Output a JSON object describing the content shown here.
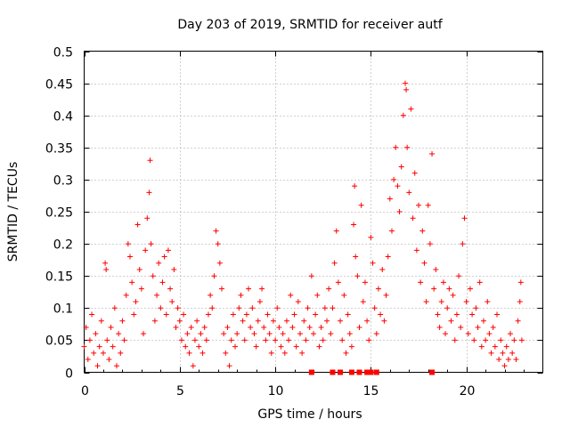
{
  "chart_data": {
    "type": "scatter",
    "title": "Day 203 of 2019, SRMTID for receiver autf",
    "xlabel": "GPS time / hours",
    "ylabel": "SRMTID / TECUs",
    "xlim": [
      0,
      24
    ],
    "ylim": [
      0,
      0.5
    ],
    "x_ticks": [
      0,
      5,
      10,
      15,
      20
    ],
    "x_tick_labels": [
      "0",
      "5",
      "10",
      "15",
      "20"
    ],
    "y_ticks": [
      0,
      0.05,
      0.1,
      0.15,
      0.2,
      0.25,
      0.3,
      0.35,
      0.4,
      0.45,
      0.5
    ],
    "y_tick_labels": [
      "0",
      "0.05",
      "0.1",
      "0.15",
      "0.2",
      "0.25",
      "0.3",
      "0.35",
      "0.4",
      "0.45",
      "0.5"
    ],
    "grid": true,
    "marker": "plus",
    "color": "#ff0000",
    "series": [
      {
        "name": "SRMTID",
        "points": [
          [
            0.0,
            0.04
          ],
          [
            0.1,
            0.07
          ],
          [
            0.2,
            0.02
          ],
          [
            0.3,
            0.05
          ],
          [
            0.4,
            0.09
          ],
          [
            0.5,
            0.03
          ],
          [
            0.6,
            0.06
          ],
          [
            0.7,
            0.01
          ],
          [
            0.8,
            0.04
          ],
          [
            0.9,
            0.08
          ],
          [
            1.0,
            0.03
          ],
          [
            1.1,
            0.17
          ],
          [
            1.15,
            0.16
          ],
          [
            1.2,
            0.05
          ],
          [
            1.3,
            0.02
          ],
          [
            1.4,
            0.07
          ],
          [
            1.5,
            0.04
          ],
          [
            1.6,
            0.1
          ],
          [
            1.7,
            0.01
          ],
          [
            1.8,
            0.06
          ],
          [
            1.9,
            0.03
          ],
          [
            2.0,
            0.08
          ],
          [
            2.1,
            0.05
          ],
          [
            2.2,
            0.12
          ],
          [
            2.3,
            0.2
          ],
          [
            2.4,
            0.18
          ],
          [
            2.5,
            0.14
          ],
          [
            2.6,
            0.09
          ],
          [
            2.7,
            0.11
          ],
          [
            2.8,
            0.23
          ],
          [
            2.9,
            0.16
          ],
          [
            3.0,
            0.13
          ],
          [
            3.1,
            0.06
          ],
          [
            3.2,
            0.19
          ],
          [
            3.3,
            0.24
          ],
          [
            3.4,
            0.28
          ],
          [
            3.45,
            0.33
          ],
          [
            3.5,
            0.2
          ],
          [
            3.6,
            0.15
          ],
          [
            3.7,
            0.08
          ],
          [
            3.8,
            0.12
          ],
          [
            3.9,
            0.17
          ],
          [
            4.0,
            0.1
          ],
          [
            4.1,
            0.14
          ],
          [
            4.2,
            0.18
          ],
          [
            4.3,
            0.09
          ],
          [
            4.4,
            0.19
          ],
          [
            4.5,
            0.13
          ],
          [
            4.6,
            0.11
          ],
          [
            4.7,
            0.16
          ],
          [
            4.8,
            0.07
          ],
          [
            4.9,
            0.1
          ],
          [
            5.0,
            0.08
          ],
          [
            5.1,
            0.05
          ],
          [
            5.2,
            0.09
          ],
          [
            5.3,
            0.04
          ],
          [
            5.4,
            0.06
          ],
          [
            5.5,
            0.03
          ],
          [
            5.6,
            0.07
          ],
          [
            5.7,
            0.01
          ],
          [
            5.8,
            0.05
          ],
          [
            5.9,
            0.08
          ],
          [
            6.0,
            0.04
          ],
          [
            6.1,
            0.06
          ],
          [
            6.2,
            0.03
          ],
          [
            6.3,
            0.07
          ],
          [
            6.4,
            0.05
          ],
          [
            6.5,
            0.09
          ],
          [
            6.6,
            0.12
          ],
          [
            6.7,
            0.1
          ],
          [
            6.8,
            0.15
          ],
          [
            6.9,
            0.22
          ],
          [
            7.0,
            0.2
          ],
          [
            7.1,
            0.17
          ],
          [
            7.2,
            0.13
          ],
          [
            7.3,
            0.06
          ],
          [
            7.4,
            0.03
          ],
          [
            7.5,
            0.07
          ],
          [
            7.6,
            0.01
          ],
          [
            7.7,
            0.05
          ],
          [
            7.8,
            0.09
          ],
          [
            7.9,
            0.04
          ],
          [
            8.0,
            0.06
          ],
          [
            8.1,
            0.1
          ],
          [
            8.2,
            0.12
          ],
          [
            8.3,
            0.08
          ],
          [
            8.4,
            0.05
          ],
          [
            8.5,
            0.09
          ],
          [
            8.6,
            0.13
          ],
          [
            8.7,
            0.07
          ],
          [
            8.8,
            0.1
          ],
          [
            8.9,
            0.06
          ],
          [
            9.0,
            0.04
          ],
          [
            9.1,
            0.08
          ],
          [
            9.2,
            0.11
          ],
          [
            9.3,
            0.13
          ],
          [
            9.4,
            0.07
          ],
          [
            9.5,
            0.05
          ],
          [
            9.6,
            0.09
          ],
          [
            9.7,
            0.06
          ],
          [
            9.8,
            0.03
          ],
          [
            9.9,
            0.08
          ],
          [
            10.0,
            0.05
          ],
          [
            10.1,
            0.1
          ],
          [
            10.2,
            0.07
          ],
          [
            10.3,
            0.04
          ],
          [
            10.4,
            0.06
          ],
          [
            10.5,
            0.03
          ],
          [
            10.6,
            0.08
          ],
          [
            10.7,
            0.05
          ],
          [
            10.8,
            0.12
          ],
          [
            10.9,
            0.07
          ],
          [
            11.0,
            0.09
          ],
          [
            11.1,
            0.04
          ],
          [
            11.2,
            0.11
          ],
          [
            11.3,
            0.06
          ],
          [
            11.4,
            0.03
          ],
          [
            11.5,
            0.08
          ],
          [
            11.6,
            0.05
          ],
          [
            11.7,
            0.1
          ],
          [
            11.8,
            0.07
          ],
          [
            11.9,
            0.15
          ],
          [
            12.0,
            0.06
          ],
          [
            12.1,
            0.09
          ],
          [
            12.2,
            0.12
          ],
          [
            12.3,
            0.04
          ],
          [
            12.4,
            0.07
          ],
          [
            12.5,
            0.05
          ],
          [
            12.6,
            0.1
          ],
          [
            12.7,
            0.08
          ],
          [
            12.8,
            0.13
          ],
          [
            12.9,
            0.06
          ],
          [
            13.0,
            0.1
          ],
          [
            13.1,
            0.17
          ],
          [
            13.2,
            0.22
          ],
          [
            13.3,
            0.14
          ],
          [
            13.4,
            0.08
          ],
          [
            13.5,
            0.05
          ],
          [
            13.6,
            0.12
          ],
          [
            13.7,
            0.03
          ],
          [
            13.8,
            0.09
          ],
          [
            13.9,
            0.06
          ],
          [
            14.0,
            0.04
          ],
          [
            14.1,
            0.23
          ],
          [
            14.15,
            0.29
          ],
          [
            14.2,
            0.18
          ],
          [
            14.3,
            0.15
          ],
          [
            14.4,
            0.07
          ],
          [
            14.5,
            0.26
          ],
          [
            14.6,
            0.11
          ],
          [
            14.7,
            0.14
          ],
          [
            14.8,
            0.08
          ],
          [
            14.9,
            0.05
          ],
          [
            15.0,
            0.21
          ],
          [
            15.1,
            0.17
          ],
          [
            15.2,
            0.1
          ],
          [
            15.3,
            0.06
          ],
          [
            15.4,
            0.13
          ],
          [
            15.5,
            0.09
          ],
          [
            15.6,
            0.16
          ],
          [
            15.7,
            0.08
          ],
          [
            15.8,
            0.12
          ],
          [
            15.9,
            0.18
          ],
          [
            16.0,
            0.27
          ],
          [
            16.1,
            0.22
          ],
          [
            16.2,
            0.3
          ],
          [
            16.3,
            0.35
          ],
          [
            16.4,
            0.29
          ],
          [
            16.5,
            0.25
          ],
          [
            16.6,
            0.32
          ],
          [
            16.7,
            0.4
          ],
          [
            16.8,
            0.45
          ],
          [
            16.85,
            0.44
          ],
          [
            16.9,
            0.35
          ],
          [
            17.0,
            0.28
          ],
          [
            17.1,
            0.41
          ],
          [
            17.2,
            0.24
          ],
          [
            17.3,
            0.31
          ],
          [
            17.4,
            0.19
          ],
          [
            17.5,
            0.26
          ],
          [
            17.6,
            0.14
          ],
          [
            17.7,
            0.22
          ],
          [
            17.8,
            0.17
          ],
          [
            17.9,
            0.11
          ],
          [
            18.0,
            0.26
          ],
          [
            18.1,
            0.2
          ],
          [
            18.2,
            0.34
          ],
          [
            18.3,
            0.13
          ],
          [
            18.4,
            0.16
          ],
          [
            18.5,
            0.09
          ],
          [
            18.6,
            0.07
          ],
          [
            18.7,
            0.11
          ],
          [
            18.8,
            0.14
          ],
          [
            18.9,
            0.06
          ],
          [
            19.0,
            0.1
          ],
          [
            19.1,
            0.13
          ],
          [
            19.2,
            0.08
          ],
          [
            19.3,
            0.12
          ],
          [
            19.4,
            0.05
          ],
          [
            19.5,
            0.09
          ],
          [
            19.6,
            0.15
          ],
          [
            19.7,
            0.07
          ],
          [
            19.8,
            0.2
          ],
          [
            19.9,
            0.24
          ],
          [
            20.0,
            0.11
          ],
          [
            20.1,
            0.06
          ],
          [
            20.2,
            0.13
          ],
          [
            20.3,
            0.09
          ],
          [
            20.4,
            0.05
          ],
          [
            20.5,
            0.1
          ],
          [
            20.6,
            0.07
          ],
          [
            20.7,
            0.14
          ],
          [
            20.8,
            0.04
          ],
          [
            20.9,
            0.08
          ],
          [
            21.0,
            0.05
          ],
          [
            21.1,
            0.11
          ],
          [
            21.2,
            0.06
          ],
          [
            21.3,
            0.03
          ],
          [
            21.4,
            0.07
          ],
          [
            21.5,
            0.04
          ],
          [
            21.6,
            0.09
          ],
          [
            21.7,
            0.02
          ],
          [
            21.8,
            0.05
          ],
          [
            21.9,
            0.03
          ],
          [
            22.0,
            0.01
          ],
          [
            22.1,
            0.04
          ],
          [
            22.2,
            0.02
          ],
          [
            22.3,
            0.06
          ],
          [
            22.4,
            0.03
          ],
          [
            22.5,
            0.05
          ],
          [
            22.6,
            0.02
          ],
          [
            22.7,
            0.08
          ],
          [
            22.8,
            0.11
          ],
          [
            22.85,
            0.14
          ],
          [
            22.9,
            0.05
          ]
        ]
      }
    ],
    "zero_level_markers": [
      11.9,
      13.0,
      13.4,
      14.0,
      14.4,
      14.8,
      15.0,
      15.3,
      18.2
    ]
  }
}
